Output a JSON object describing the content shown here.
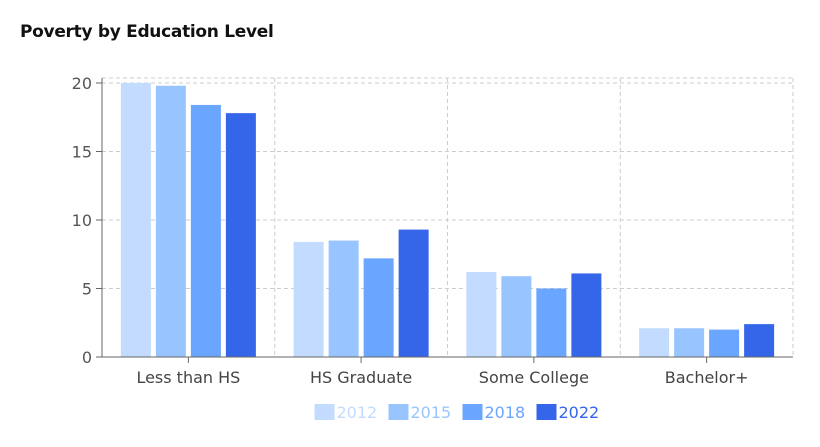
{
  "chart_data": {
    "type": "bar",
    "title": "Poverty by Education Level",
    "categories": [
      "Less than HS",
      "HS Graduate",
      "Some College",
      "Bachelor+"
    ],
    "series": [
      {
        "name": "2012",
        "color": "#c3dbff",
        "legend_text_color": "#c3dbff",
        "values": [
          20.0,
          8.4,
          6.2,
          2.1
        ]
      },
      {
        "name": "2015",
        "color": "#98c5ff",
        "legend_text_color": "#98c5ff",
        "values": [
          19.8,
          8.5,
          5.9,
          2.1
        ]
      },
      {
        "name": "2018",
        "color": "#6aa5ff",
        "legend_text_color": "#6aa5ff",
        "values": [
          18.4,
          7.2,
          5.0,
          2.0
        ]
      },
      {
        "name": "2022",
        "color": "#3566ea",
        "legend_text_color": "#3566ea",
        "values": [
          17.8,
          9.3,
          6.1,
          2.4
        ]
      }
    ],
    "ylim": [
      0,
      20
    ],
    "yticks": [
      0,
      5,
      10,
      15,
      20
    ],
    "grid": true,
    "legend_position": "bottom"
  }
}
